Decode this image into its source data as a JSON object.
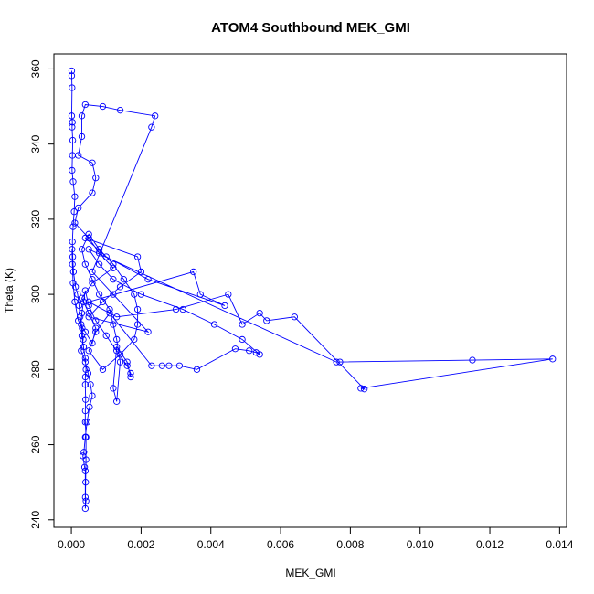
{
  "chart_data": {
    "type": "line",
    "title": "ATOM4 Southbound MEK_GMI",
    "xlabel": "MEK_GMI",
    "ylabel": "Theta (K)",
    "xlim": [
      -0.0005,
      0.0142
    ],
    "ylim": [
      238,
      364
    ],
    "xticks": [
      0.0,
      0.002,
      0.004,
      0.006,
      0.008,
      0.01,
      0.012,
      0.014
    ],
    "xtick_labels": [
      "0.000",
      "0.002",
      "0.004",
      "0.006",
      "0.008",
      "0.010",
      "0.012",
      "0.014"
    ],
    "yticks": [
      240,
      260,
      280,
      300,
      320,
      340,
      360
    ],
    "ytick_labels": [
      "240",
      "260",
      "280",
      "300",
      "320",
      "340",
      "360"
    ],
    "grid": false,
    "series": [
      {
        "marker": "open-circle",
        "color": "#0000ff",
        "x": [
          1e-05,
          1e-05,
          2e-05,
          1e-05,
          3e-05,
          2e-05,
          4e-05,
          3e-05,
          2e-05,
          5e-05,
          0.0001,
          8e-05,
          5e-05,
          3e-05,
          4e-05,
          6e-05,
          0.00012,
          0.00018,
          0.00022,
          0.00025,
          0.00031,
          0.00034,
          0.00028,
          0.0004,
          0.00048,
          0.00055,
          0.0006,
          0.00052,
          0.00045,
          0.0004,
          0.00036,
          0.00033,
          0.00038,
          0.0004,
          0.0004,
          0.00042,
          0.0004,
          0.00041,
          0.00042,
          0.00042,
          0.0004,
          0.0004,
          0.00041,
          0.0004,
          0.0004,
          0.00042,
          0.0004,
          0.00035,
          0.0003,
          0.00028,
          0.0003,
          0.00035,
          0.0004,
          0.0005,
          0.0007,
          0.001,
          0.0013,
          0.0016,
          0.0017,
          0.0017,
          0.0016,
          0.0013,
          0.0012,
          0.0013,
          0.0014,
          0.0013,
          0.0012,
          0.0011,
          0.0008,
          0.0006,
          0.0004,
          0.0003,
          0.0005,
          0.0008,
          0.0012,
          0.0015,
          0.0018,
          0.0019,
          0.0019,
          0.0018,
          0.0014,
          0.0009,
          0.0005,
          0.0007,
          0.0011,
          0.0023,
          0.0026,
          0.0028,
          0.0031,
          0.0036,
          0.0047,
          0.0051,
          0.0053,
          0.0054,
          0.0049,
          0.0041,
          0.0032,
          0.002,
          0.0012,
          0.0008,
          0.0005,
          0.0076,
          0.0077,
          0.0115,
          0.0138,
          0.0083,
          0.0084,
          0.0064,
          0.0056,
          0.0054,
          0.0049,
          0.0045,
          0.003,
          0.0013,
          0.0005,
          0.0035,
          0.0037,
          0.0044,
          0.0022,
          0.001,
          0.0004,
          0.0019,
          0.002,
          0.0014,
          0.0009,
          0.0005,
          0.0022,
          0.0012,
          0.0006,
          0.0023,
          0.0024,
          0.0014,
          0.0009,
          0.0004,
          0.0003,
          0.0003,
          0.0002,
          0.0006,
          0.0007,
          0.0006,
          0.0002,
          0.0001,
          0.0005,
          0.0008,
          0.0012,
          0.0006,
          0.0003,
          0.0005,
          0.0007,
          0.0006,
          0.0004,
          0.0002,
          0.0001,
          5e-05,
          3e-05,
          2e-05
        ],
        "y": [
          359.5,
          358.2,
          355,
          347.5,
          345.8,
          344.5,
          341,
          337,
          333,
          330,
          326,
          322,
          318,
          314,
          310,
          306,
          302,
          300,
          297,
          294,
          291,
          288,
          285,
          282,
          279,
          276,
          273,
          270,
          266,
          262,
          258,
          257,
          254,
          253,
          246,
          245,
          243,
          250,
          256,
          262,
          266,
          269,
          272,
          276,
          278,
          280,
          283,
          286,
          289,
          292,
          295,
          298,
          301,
          297,
          293,
          289,
          285,
          281,
          279,
          278,
          282,
          286,
          275,
          271.5,
          282,
          288,
          292,
          296,
          300,
          304,
          308,
          312,
          316,
          312,
          308,
          304,
          300,
          296,
          292,
          288,
          284,
          280,
          285,
          290,
          295,
          281,
          281,
          281,
          281,
          280,
          285.5,
          285,
          284.5,
          284,
          288,
          292,
          296,
          300,
          304,
          308,
          312,
          282,
          282,
          282.5,
          282.8,
          275,
          274.8,
          294,
          293,
          295,
          292,
          300,
          296,
          294,
          298,
          306,
          300,
          297,
          304,
          310,
          315,
          310,
          306,
          302,
          298,
          294,
          290,
          300,
          306,
          344.5,
          347.5,
          349,
          350,
          350.5,
          347.5,
          342,
          337,
          335,
          331,
          327,
          323,
          319,
          315,
          311,
          307,
          303,
          299,
          295,
          291,
          287,
          290,
          293,
          298,
          303,
          308,
          312
        ]
      }
    ]
  }
}
